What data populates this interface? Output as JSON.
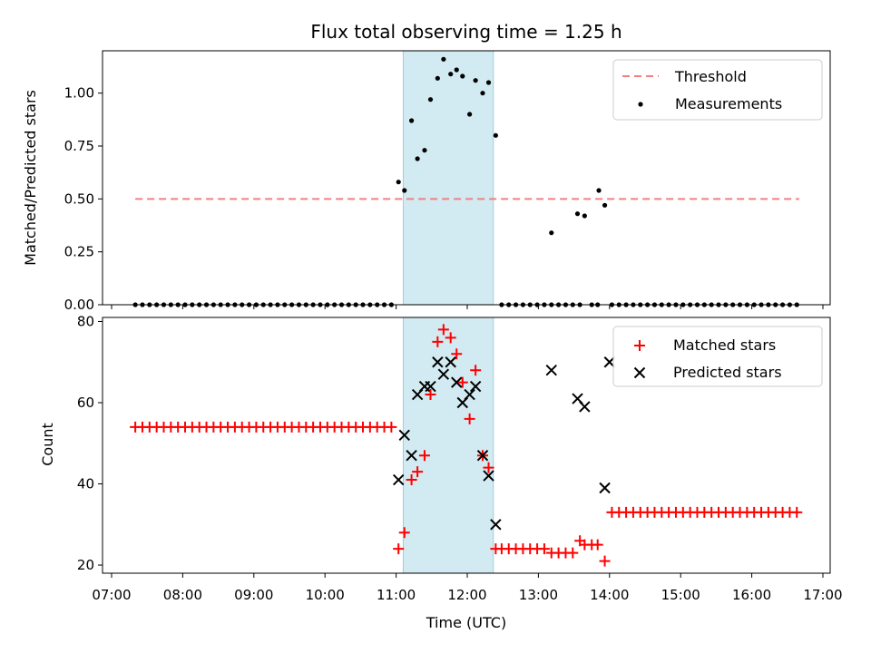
{
  "chart_data": [
    {
      "type": "scatter",
      "title": "Flux total observing time = 1.25 h",
      "ylabel": "Matched/Predicted stars",
      "xlabel": "",
      "xlim": [
        "07:00",
        "17:00"
      ],
      "ylim": [
        0,
        1.2
      ],
      "yticks": [
        "0.00",
        "0.25",
        "0.50",
        "0.75",
        "1.00"
      ],
      "shaded_interval": [
        "11:06",
        "12:22"
      ],
      "legend": {
        "placement": "top-right",
        "entries": [
          "Threshold",
          "Measurements"
        ]
      },
      "threshold": {
        "name": "Threshold",
        "value": 0.5,
        "x_range": [
          "07:20",
          "16:40"
        ],
        "color": "#f08080"
      },
      "measurements": {
        "name": "Measurements",
        "color": "#000000",
        "points": [
          [
            "07:20",
            0
          ],
          [
            "07:26",
            0
          ],
          [
            "07:32",
            0
          ],
          [
            "07:38",
            0
          ],
          [
            "07:44",
            0
          ],
          [
            "07:50",
            0
          ],
          [
            "07:56",
            0
          ],
          [
            "08:02",
            0
          ],
          [
            "08:08",
            0
          ],
          [
            "08:14",
            0
          ],
          [
            "08:20",
            0
          ],
          [
            "08:26",
            0
          ],
          [
            "08:32",
            0
          ],
          [
            "08:38",
            0
          ],
          [
            "08:44",
            0
          ],
          [
            "08:50",
            0
          ],
          [
            "08:56",
            0
          ],
          [
            "09:02",
            0
          ],
          [
            "09:08",
            0
          ],
          [
            "09:14",
            0
          ],
          [
            "09:20",
            0
          ],
          [
            "09:26",
            0
          ],
          [
            "09:32",
            0
          ],
          [
            "09:38",
            0
          ],
          [
            "09:44",
            0
          ],
          [
            "09:50",
            0
          ],
          [
            "09:56",
            0
          ],
          [
            "10:02",
            0
          ],
          [
            "10:08",
            0
          ],
          [
            "10:14",
            0
          ],
          [
            "10:20",
            0
          ],
          [
            "10:26",
            0
          ],
          [
            "10:32",
            0
          ],
          [
            "10:38",
            0
          ],
          [
            "10:44",
            0
          ],
          [
            "10:50",
            0
          ],
          [
            "10:56",
            0
          ],
          [
            "11:02",
            0.58
          ],
          [
            "11:07",
            0.54
          ],
          [
            "11:13",
            0.87
          ],
          [
            "11:18",
            0.69
          ],
          [
            "11:24",
            0.73
          ],
          [
            "11:29",
            0.97
          ],
          [
            "11:35",
            1.07
          ],
          [
            "11:40",
            1.16
          ],
          [
            "11:46",
            1.09
          ],
          [
            "11:51",
            1.11
          ],
          [
            "11:56",
            1.08
          ],
          [
            "12:02",
            0.9
          ],
          [
            "12:07",
            1.06
          ],
          [
            "12:13",
            1.0
          ],
          [
            "12:18",
            1.05
          ],
          [
            "12:24",
            0.8
          ],
          [
            "12:29",
            0
          ],
          [
            "12:35",
            0
          ],
          [
            "12:41",
            0
          ],
          [
            "12:47",
            0
          ],
          [
            "12:53",
            0
          ],
          [
            "12:59",
            0
          ],
          [
            "13:05",
            0
          ],
          [
            "13:11",
            0
          ],
          [
            "13:17",
            0
          ],
          [
            "13:11",
            0.34
          ],
          [
            "13:23",
            0
          ],
          [
            "13:29",
            0
          ],
          [
            "13:35",
            0
          ],
          [
            "13:33",
            0.43
          ],
          [
            "13:39",
            0.42
          ],
          [
            "13:45",
            0
          ],
          [
            "13:50",
            0
          ],
          [
            "13:51",
            0.54
          ],
          [
            "13:56",
            0.47
          ],
          [
            "14:02",
            0
          ],
          [
            "14:08",
            0
          ],
          [
            "14:14",
            0
          ],
          [
            "14:20",
            0
          ],
          [
            "14:26",
            0
          ],
          [
            "14:32",
            0
          ],
          [
            "14:38",
            0
          ],
          [
            "14:44",
            0
          ],
          [
            "14:50",
            0
          ],
          [
            "14:56",
            0
          ],
          [
            "15:02",
            0
          ],
          [
            "15:08",
            0
          ],
          [
            "15:14",
            0
          ],
          [
            "15:20",
            0
          ],
          [
            "15:26",
            0
          ],
          [
            "15:32",
            0
          ],
          [
            "15:38",
            0
          ],
          [
            "15:44",
            0
          ],
          [
            "15:50",
            0
          ],
          [
            "15:56",
            0
          ],
          [
            "16:02",
            0
          ],
          [
            "16:08",
            0
          ],
          [
            "16:14",
            0
          ],
          [
            "16:20",
            0
          ],
          [
            "16:26",
            0
          ],
          [
            "16:32",
            0
          ],
          [
            "16:38",
            0
          ]
        ]
      }
    },
    {
      "type": "scatter",
      "xlabel": "Time (UTC)",
      "ylabel": "Count",
      "xlim": [
        "07:00",
        "17:00"
      ],
      "ylim": [
        18,
        81
      ],
      "yticks": [
        "20",
        "40",
        "60",
        "80"
      ],
      "xticks": [
        "07:00",
        "08:00",
        "09:00",
        "10:00",
        "11:00",
        "12:00",
        "13:00",
        "14:00",
        "15:00",
        "16:00",
        "17:00"
      ],
      "shaded_interval": [
        "11:06",
        "12:22"
      ],
      "legend": {
        "placement": "top-right",
        "entries": [
          "Matched stars",
          "Predicted stars"
        ]
      },
      "series": [
        {
          "name": "Matched stars",
          "marker": "plus",
          "color": "#ff0000",
          "points": [
            [
              "07:20",
              54
            ],
            [
              "07:26",
              54
            ],
            [
              "07:32",
              54
            ],
            [
              "07:38",
              54
            ],
            [
              "07:44",
              54
            ],
            [
              "07:50",
              54
            ],
            [
              "07:56",
              54
            ],
            [
              "08:02",
              54
            ],
            [
              "08:08",
              54
            ],
            [
              "08:14",
              54
            ],
            [
              "08:20",
              54
            ],
            [
              "08:26",
              54
            ],
            [
              "08:32",
              54
            ],
            [
              "08:38",
              54
            ],
            [
              "08:44",
              54
            ],
            [
              "08:50",
              54
            ],
            [
              "08:56",
              54
            ],
            [
              "09:02",
              54
            ],
            [
              "09:08",
              54
            ],
            [
              "09:14",
              54
            ],
            [
              "09:20",
              54
            ],
            [
              "09:26",
              54
            ],
            [
              "09:32",
              54
            ],
            [
              "09:38",
              54
            ],
            [
              "09:44",
              54
            ],
            [
              "09:50",
              54
            ],
            [
              "09:56",
              54
            ],
            [
              "10:02",
              54
            ],
            [
              "10:08",
              54
            ],
            [
              "10:14",
              54
            ],
            [
              "10:20",
              54
            ],
            [
              "10:26",
              54
            ],
            [
              "10:32",
              54
            ],
            [
              "10:38",
              54
            ],
            [
              "10:44",
              54
            ],
            [
              "10:50",
              54
            ],
            [
              "10:56",
              54
            ],
            [
              "11:02",
              24
            ],
            [
              "11:07",
              28
            ],
            [
              "11:13",
              41
            ],
            [
              "11:18",
              43
            ],
            [
              "11:24",
              47
            ],
            [
              "11:29",
              62
            ],
            [
              "11:35",
              75
            ],
            [
              "11:40",
              78
            ],
            [
              "11:46",
              76
            ],
            [
              "11:51",
              72
            ],
            [
              "11:56",
              65
            ],
            [
              "12:02",
              56
            ],
            [
              "12:07",
              68
            ],
            [
              "12:13",
              47
            ],
            [
              "12:18",
              44
            ],
            [
              "12:24",
              24
            ],
            [
              "12:29",
              24
            ],
            [
              "12:35",
              24
            ],
            [
              "12:41",
              24
            ],
            [
              "12:47",
              24
            ],
            [
              "12:53",
              24
            ],
            [
              "12:59",
              24
            ],
            [
              "13:05",
              24
            ],
            [
              "13:11",
              23
            ],
            [
              "13:17",
              23
            ],
            [
              "13:23",
              23
            ],
            [
              "13:29",
              23
            ],
            [
              "13:35",
              26
            ],
            [
              "13:39",
              25
            ],
            [
              "13:45",
              25
            ],
            [
              "13:50",
              25
            ],
            [
              "13:56",
              21
            ],
            [
              "14:02",
              33
            ],
            [
              "14:08",
              33
            ],
            [
              "14:14",
              33
            ],
            [
              "14:20",
              33
            ],
            [
              "14:26",
              33
            ],
            [
              "14:32",
              33
            ],
            [
              "14:38",
              33
            ],
            [
              "14:44",
              33
            ],
            [
              "14:50",
              33
            ],
            [
              "14:56",
              33
            ],
            [
              "15:02",
              33
            ],
            [
              "15:08",
              33
            ],
            [
              "15:14",
              33
            ],
            [
              "15:20",
              33
            ],
            [
              "15:26",
              33
            ],
            [
              "15:32",
              33
            ],
            [
              "15:38",
              33
            ],
            [
              "15:44",
              33
            ],
            [
              "15:50",
              33
            ],
            [
              "15:56",
              33
            ],
            [
              "16:02",
              33
            ],
            [
              "16:08",
              33
            ],
            [
              "16:14",
              33
            ],
            [
              "16:20",
              33
            ],
            [
              "16:26",
              33
            ],
            [
              "16:32",
              33
            ],
            [
              "16:38",
              33
            ]
          ]
        },
        {
          "name": "Predicted stars",
          "marker": "x",
          "color": "#000000",
          "points": [
            [
              "11:02",
              41
            ],
            [
              "11:07",
              52
            ],
            [
              "11:13",
              47
            ],
            [
              "11:18",
              62
            ],
            [
              "11:24",
              64
            ],
            [
              "11:29",
              64
            ],
            [
              "11:35",
              70
            ],
            [
              "11:40",
              67
            ],
            [
              "11:46",
              70
            ],
            [
              "11:51",
              65
            ],
            [
              "11:56",
              60
            ],
            [
              "12:02",
              62
            ],
            [
              "12:07",
              64
            ],
            [
              "12:13",
              47
            ],
            [
              "12:18",
              42
            ],
            [
              "12:24",
              30
            ],
            [
              "13:11",
              68
            ],
            [
              "13:33",
              61
            ],
            [
              "13:39",
              59
            ],
            [
              "13:56",
              39
            ],
            [
              "14:00",
              70
            ]
          ]
        }
      ]
    }
  ]
}
